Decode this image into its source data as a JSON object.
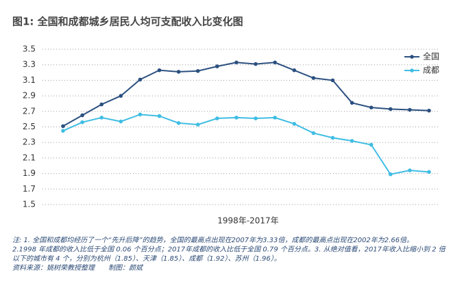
{
  "chart_data": {
    "type": "line",
    "title": "图1: 全国和成都城乡居民人均可支配收入比变化图",
    "x_label": "1998年-2017年",
    "categories": [
      null,
      null,
      null,
      null,
      null,
      null,
      null,
      null,
      null,
      null,
      null,
      null,
      null,
      null,
      null,
      null,
      null,
      null,
      null,
      null
    ],
    "series": [
      {
        "name": "全国",
        "color": "#2b5080",
        "values": [
          2.51,
          2.65,
          2.79,
          2.9,
          3.11,
          3.23,
          3.21,
          3.22,
          3.28,
          3.33,
          3.31,
          3.33,
          3.23,
          3.13,
          3.1,
          2.81,
          2.75,
          2.73,
          2.72,
          2.71
        ]
      },
      {
        "name": "成都",
        "color": "#3fbde3",
        "values": [
          2.45,
          2.56,
          2.62,
          2.57,
          2.66,
          2.64,
          2.55,
          2.53,
          2.61,
          2.62,
          2.61,
          2.62,
          2.54,
          2.42,
          2.36,
          2.32,
          2.27,
          1.89,
          1.94,
          1.92
        ]
      }
    ],
    "ylim": [
      1.5,
      3.5
    ],
    "yticks": [
      1.5,
      1.7,
      1.9,
      2.1,
      2.3,
      2.5,
      2.7,
      2.9,
      3.1,
      3.3,
      3.5
    ],
    "grid": true,
    "legend": "upper right",
    "notes": [
      "注: 1. 全国和成都均经历了一个“先升后降”的趋势，全国的最高点出现在2007年为3.33倍，成都的最高点出现在2002年为2.66倍。",
      "2.1998 年成都的收入比低于全国 0.06 个百分点；2017年成都的收入比低于全国 0.79 个百分点。3. 从绝对值看，2017年收入比缩小到 2 倍",
      "以下的城市有 4 个，分别为杭州（1.85）、天津（1.85）、成都（1.92）、苏州（1.96）。",
      "资料来源：姚树荣教授整理　　制图：颜斌"
    ]
  }
}
